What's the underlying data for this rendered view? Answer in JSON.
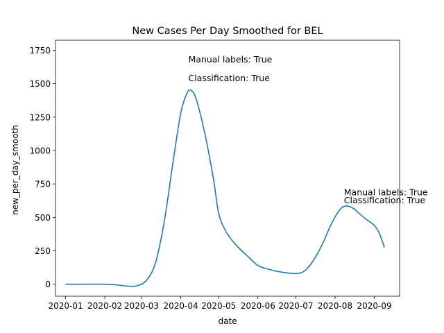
{
  "chart_data": {
    "type": "line",
    "title": "New Cases Per Day Smoothed for BEL",
    "xlabel": "date",
    "ylabel": "new_per_day_smooth",
    "x_type": "date",
    "xlim": [
      "2019-12-24",
      "2020-09-21"
    ],
    "ylim": [
      -90,
      1825
    ],
    "grid": false,
    "x_ticks": [
      "2020-01-01",
      "2020-02-01",
      "2020-03-01",
      "2020-04-01",
      "2020-05-01",
      "2020-06-01",
      "2020-07-01",
      "2020-08-01",
      "2020-09-01"
    ],
    "x_tick_labels": [
      "2020-01",
      "2020-02",
      "2020-03",
      "2020-04",
      "2020-05",
      "2020-06",
      "2020-07",
      "2020-08",
      "2020-09"
    ],
    "y_ticks": [
      0,
      250,
      500,
      750,
      1000,
      1250,
      1500,
      1750
    ],
    "y_tick_labels": [
      "0",
      "250",
      "500",
      "750",
      "1000",
      "1250",
      "1500",
      "1750"
    ],
    "series": [
      {
        "color": "#1f77b4",
        "x": [
          "2020-01-01",
          "2020-01-15",
          "2020-02-01",
          "2020-02-10",
          "2020-02-20",
          "2020-02-27",
          "2020-03-05",
          "2020-03-12",
          "2020-03-19",
          "2020-03-26",
          "2020-04-01",
          "2020-04-06",
          "2020-04-09",
          "2020-04-13",
          "2020-04-20",
          "2020-04-27",
          "2020-05-01",
          "2020-05-07",
          "2020-05-15",
          "2020-05-25",
          "2020-06-01",
          "2020-06-10",
          "2020-06-20",
          "2020-07-01",
          "2020-07-08",
          "2020-07-15",
          "2020-07-22",
          "2020-07-29",
          "2020-08-05",
          "2020-08-10",
          "2020-08-15",
          "2020-08-20",
          "2020-08-25",
          "2020-09-01",
          "2020-09-05",
          "2020-09-09"
        ],
        "y": [
          0,
          0,
          0,
          -5,
          -15,
          -10,
          30,
          160,
          470,
          920,
          1280,
          1430,
          1450,
          1390,
          1130,
          780,
          530,
          390,
          290,
          200,
          140,
          110,
          90,
          80,
          100,
          180,
          300,
          450,
          560,
          585,
          570,
          530,
          490,
          440,
          380,
          275
        ]
      }
    ],
    "annotations": [
      {
        "text": "Manual labels: True",
        "x": "2020-04-07",
        "y": 1660
      },
      {
        "text": "Classification: True",
        "x": "2020-04-07",
        "y": 1520
      },
      {
        "text": "Manual labels: True",
        "x": "2020-08-08",
        "y": 665
      },
      {
        "text": "Classification: True",
        "x": "2020-08-08",
        "y": 605
      }
    ]
  }
}
